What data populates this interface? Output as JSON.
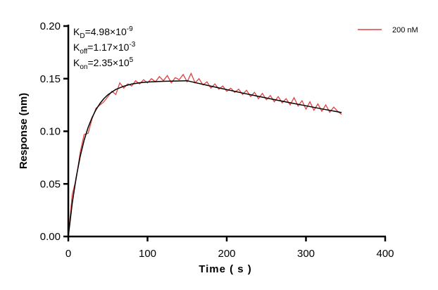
{
  "chart_data": {
    "type": "line",
    "xlabel": "Time ( s )",
    "ylabel": "Response (nm)",
    "xlim": [
      0,
      400
    ],
    "ylim": [
      0,
      0.2
    ],
    "xticks": [
      "0",
      "100",
      "200",
      "300",
      "400"
    ],
    "yticks": [
      "0.00",
      "0.05",
      "0.10",
      "0.15",
      "0.20"
    ],
    "grid": false,
    "legend_position": "top-right",
    "annotations": {
      "kd": {
        "label": "K",
        "sub": "D",
        "value": "=4.98×10",
        "exp": "-9"
      },
      "koff": {
        "label": "K",
        "sub": "off",
        "value": "=1.17×10",
        "exp": "-3"
      },
      "kon": {
        "label": "K",
        "sub": "on",
        "value": "=2.35×10",
        "exp": "5"
      }
    },
    "series": [
      {
        "name": "200 nM",
        "color": "#e04040",
        "x": [
          0,
          5,
          10,
          15,
          20,
          25,
          30,
          35,
          40,
          45,
          50,
          55,
          60,
          65,
          70,
          75,
          80,
          85,
          90,
          95,
          100,
          105,
          110,
          115,
          120,
          125,
          130,
          135,
          140,
          145,
          150,
          155,
          160,
          165,
          170,
          175,
          180,
          185,
          190,
          195,
          200,
          205,
          210,
          215,
          220,
          225,
          230,
          235,
          240,
          245,
          250,
          255,
          260,
          265,
          270,
          275,
          280,
          285,
          290,
          295,
          300,
          305,
          310,
          315,
          320,
          325,
          330,
          335,
          340,
          345
        ],
        "y": [
          0.0,
          0.04,
          0.055,
          0.08,
          0.097,
          0.098,
          0.112,
          0.122,
          0.125,
          0.128,
          0.133,
          0.138,
          0.135,
          0.146,
          0.141,
          0.145,
          0.143,
          0.148,
          0.145,
          0.149,
          0.146,
          0.15,
          0.147,
          0.152,
          0.148,
          0.153,
          0.146,
          0.151,
          0.149,
          0.154,
          0.147,
          0.155,
          0.146,
          0.15,
          0.144,
          0.147,
          0.141,
          0.145,
          0.14,
          0.143,
          0.138,
          0.141,
          0.137,
          0.14,
          0.135,
          0.139,
          0.133,
          0.137,
          0.131,
          0.136,
          0.13,
          0.134,
          0.128,
          0.133,
          0.127,
          0.131,
          0.125,
          0.132,
          0.124,
          0.129,
          0.121,
          0.128,
          0.12,
          0.126,
          0.119,
          0.125,
          0.118,
          0.123,
          0.119,
          0.116
        ]
      },
      {
        "color": "#000000",
        "x": [
          0,
          5,
          10,
          15,
          20,
          25,
          30,
          35,
          40,
          45,
          50,
          60,
          70,
          80,
          90,
          100,
          120,
          150,
          160,
          180,
          200,
          220,
          240,
          260,
          280,
          300,
          320,
          345
        ],
        "y": [
          0,
          0.0317,
          0.0566,
          0.0761,
          0.0916,
          0.1036,
          0.1131,
          0.1206,
          0.1264,
          0.1311,
          0.1347,
          0.1398,
          0.1429,
          0.1449,
          0.1461,
          0.1468,
          0.1475,
          0.148,
          0.1463,
          0.1429,
          0.1396,
          0.1363,
          0.1332,
          0.1301,
          0.1271,
          0.1242,
          0.1213,
          0.1178
        ]
      }
    ]
  }
}
